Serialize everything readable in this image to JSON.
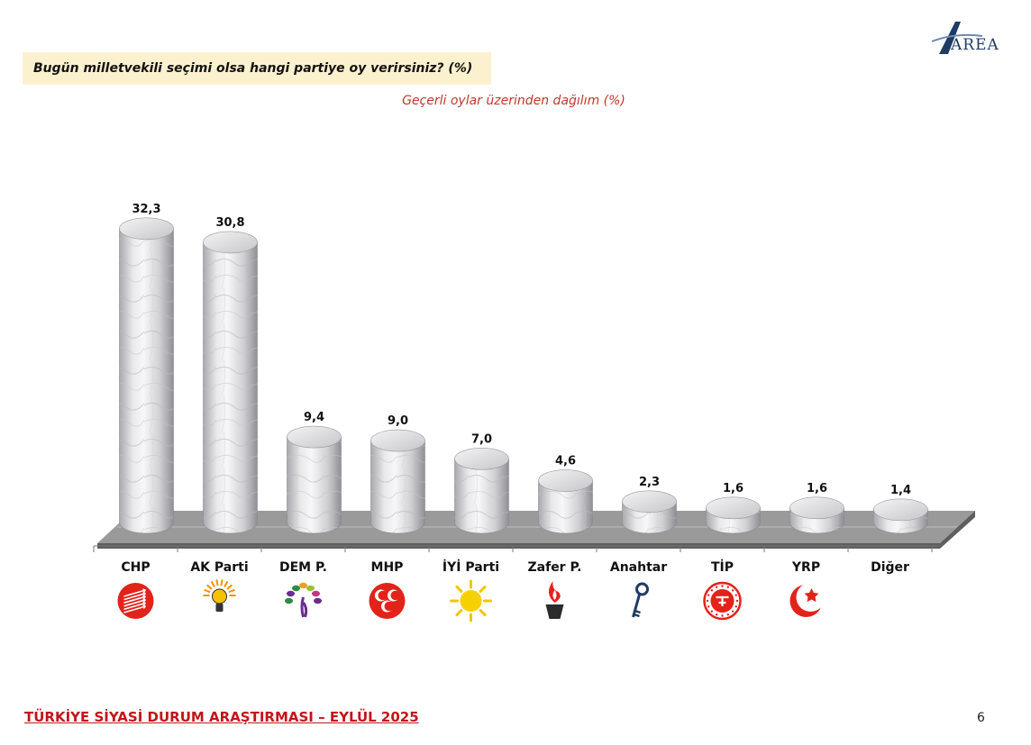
{
  "question": "Bugün milletvekili seçimi olsa hangi partiye oy verirsiniz? (%)",
  "subtitle": "Geçerli oylar üzerinden dağılım (%)",
  "logo": {
    "text": "AREA",
    "color": "#1f3b64"
  },
  "footer": "TÜRKİYE SİYASİ DURUM ARAŞTIRMASI – EYLÜL 2025",
  "page_number": "6",
  "colors": {
    "accent": "#c0161c",
    "subtitle": "#c0392b",
    "question_bg": "#fcf1cf",
    "bar": "#d9d9dc",
    "floor": "#8c8c8c"
  },
  "chart_data": {
    "type": "bar",
    "title": "Geçerli oylar üzerinden dağılım (%)",
    "categories": [
      "CHP",
      "AK Parti",
      "DEM P.",
      "MHP",
      "İYİ Parti",
      "Zafer P.",
      "Anahtar",
      "TİP",
      "YRP",
      "Diğer"
    ],
    "values": [
      32.3,
      30.8,
      9.4,
      9.0,
      7.0,
      4.6,
      2.3,
      1.6,
      1.6,
      1.4
    ],
    "value_labels": [
      "32,3",
      "30,8",
      "9,4",
      "9,0",
      "7,0",
      "4,6",
      "2,3",
      "1,6",
      "1,6",
      "1,4"
    ],
    "icons": [
      "chp-six-arrows-icon",
      "ak-parti-lightbulb-icon",
      "dem-tree-icon",
      "mhp-crescents-icon",
      "iyi-parti-sun-icon",
      "zafer-torch-icon",
      "anahtar-key-icon",
      "tip-seal-icon",
      "yrp-crescent-icon",
      ""
    ],
    "ylim": [
      0,
      35
    ],
    "grid": false,
    "legend": "none"
  }
}
